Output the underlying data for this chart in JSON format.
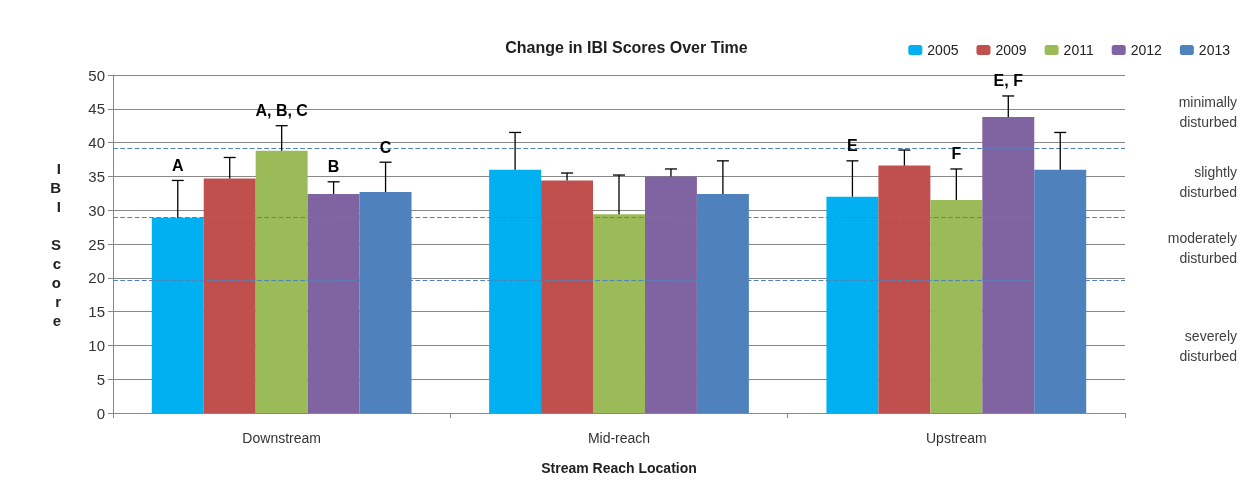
{
  "chart_data": {
    "type": "bar",
    "title": "Change in IBI Scores Over Time",
    "xlabel": "Stream Reach Location",
    "ylabel": "IBI Score",
    "categories": [
      "Downstream",
      "Mid-reach",
      "Upstream"
    ],
    "series": [
      {
        "name": "2005",
        "color": "#00b0f0",
        "values": [
          28.9,
          36.0,
          32.0
        ],
        "errors": [
          [
            28.9,
            34.4
          ],
          [
            36.0,
            41.5
          ],
          [
            32.0,
            37.3
          ]
        ],
        "value_labels": [
          "A",
          null,
          "E"
        ]
      },
      {
        "name": "2009",
        "color": "#c0504d",
        "values": [
          34.7,
          34.4,
          36.6
        ],
        "errors": [
          [
            34.7,
            37.8
          ],
          [
            34.4,
            35.5
          ],
          [
            36.6,
            38.9
          ]
        ]
      },
      {
        "name": "2011",
        "color": "#9bbb59",
        "values": [
          38.8,
          29.4,
          31.5
        ],
        "errors": [
          [
            38.8,
            42.5
          ],
          [
            29.4,
            35.2
          ],
          [
            31.5,
            36.1
          ]
        ],
        "value_labels": [
          "A, B, C",
          null,
          "F"
        ]
      },
      {
        "name": "2012",
        "color": "#8064a2",
        "values": [
          32.4,
          35.0,
          43.8
        ],
        "errors": [
          [
            32.4,
            34.2
          ],
          [
            35.0,
            36.1
          ],
          [
            43.8,
            46.9
          ]
        ],
        "value_labels": [
          "B",
          null,
          "E, F"
        ]
      },
      {
        "name": "2013",
        "color": "#4f81bd",
        "values": [
          32.7,
          32.4,
          36.0
        ],
        "errors": [
          [
            32.7,
            37.1
          ],
          [
            32.4,
            37.3
          ],
          [
            36.0,
            41.5
          ]
        ],
        "value_labels": [
          "C",
          null,
          null
        ]
      }
    ],
    "ylim": [
      0,
      50
    ],
    "yticks": [
      0,
      5,
      10,
      15,
      20,
      25,
      30,
      35,
      40,
      45,
      50
    ],
    "grid": "y",
    "legend": "top right",
    "ref_lines": [
      {
        "axis": "y",
        "value": 39.2,
        "color": "#4f81bd",
        "line_style": "dashed"
      },
      {
        "axis": "y",
        "value": 29,
        "color": "#4f81bd",
        "line_style": "dashed"
      },
      {
        "axis": "y",
        "value": 19.7,
        "color": "#4f81bd",
        "line_style": "dashed"
      }
    ],
    "annotations": [
      "minimally\ndisturbed",
      "slightly\ndisturbed",
      "moderately\ndisturbed",
      "severely\ndisturbed"
    ]
  }
}
